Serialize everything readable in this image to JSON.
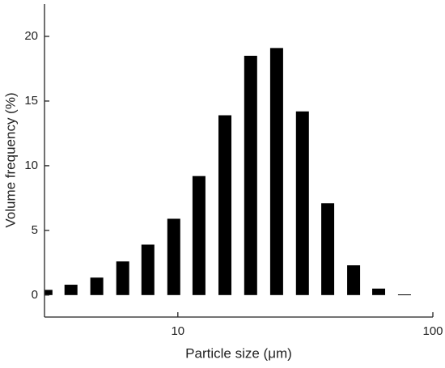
{
  "chart_data": {
    "type": "bar",
    "xscale": "log",
    "x_label": "Particle size (μm)",
    "y_label": "Volume frequency (%)",
    "x": [
      3.04,
      3.81,
      4.81,
      6.08,
      7.63,
      9.64,
      12.1,
      15.3,
      19.3,
      24.4,
      30.8,
      38.7,
      48.9,
      61.3,
      77.4
    ],
    "values": [
      0.4,
      0.8,
      1.35,
      2.6,
      3.9,
      5.9,
      9.2,
      13.9,
      18.5,
      19.1,
      14.2,
      7.1,
      2.3,
      0.5,
      0.05
    ],
    "color": "#000000",
    "xlim": [
      3,
      100
    ],
    "xticks": [
      10,
      100
    ],
    "ylim": [
      -1.7,
      22.5
    ],
    "yticks": [
      0,
      5,
      10,
      15,
      20
    ]
  }
}
